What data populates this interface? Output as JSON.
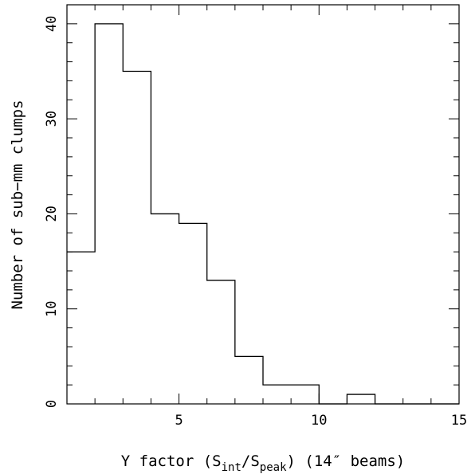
{
  "chart_data": {
    "type": "bar",
    "style": "step-histogram",
    "bin_edges": [
      1,
      2,
      3,
      4,
      5,
      6,
      7,
      8,
      9,
      10,
      11,
      12,
      13,
      14,
      15
    ],
    "values": [
      16,
      40,
      35,
      20,
      19,
      13,
      5,
      2,
      2,
      0,
      1,
      0,
      0,
      0
    ],
    "xlim": [
      1,
      15
    ],
    "ylim": [
      0,
      42
    ],
    "x_major_ticks": [
      5,
      10,
      15
    ],
    "x_minor_step": 1,
    "y_major_ticks": [
      0,
      10,
      20,
      30,
      40
    ],
    "y_minor_step": 2,
    "x_tick_labels": [
      "5",
      "10",
      "15"
    ],
    "y_tick_labels": [
      "0",
      "10",
      "20",
      "30",
      "40"
    ],
    "ylabel": "Number of sub−mm clumps",
    "xlabel": {
      "p1": "Y factor (S",
      "sub1": "int",
      "p2": "/S",
      "sub2": "peak",
      "p3": ")  (14″ beams)"
    },
    "grid": false,
    "legend": "none"
  }
}
